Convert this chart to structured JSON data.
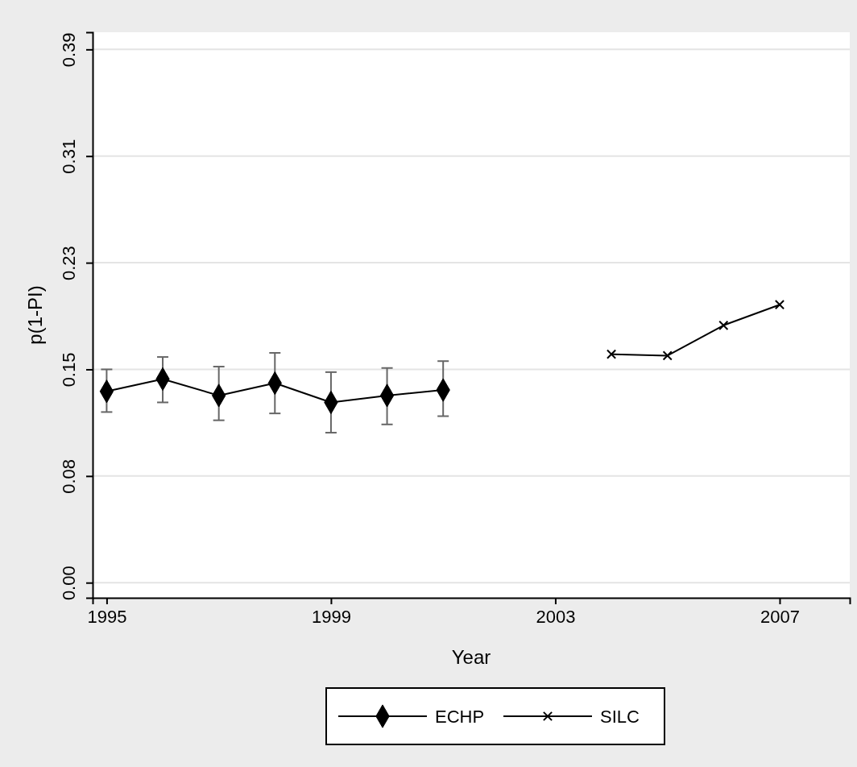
{
  "chart_data": {
    "type": "line",
    "xlabel": "Year",
    "ylabel": "p(1-PI)",
    "xlim": [
      1994.75,
      2008.25
    ],
    "xticks": [
      1995,
      1999,
      2003,
      2007
    ],
    "ylim": [
      -0.011,
      0.4
    ],
    "yticks": [
      {
        "value": 0,
        "label": "0.00"
      },
      {
        "value": 0.0775,
        "label": "0.08"
      },
      {
        "value": 0.155,
        "label": "0.15"
      },
      {
        "value": 0.2325,
        "label": "0.23"
      },
      {
        "value": 0.31,
        "label": "0.31"
      },
      {
        "value": 0.3875,
        "label": "0.39"
      }
    ],
    "grid": "y",
    "legend": "bottom",
    "line_style": "solid",
    "series": [
      {
        "name": "ECHP",
        "color": "#000000",
        "marker": "diamond",
        "x": [
          1995,
          1996,
          1997,
          1998,
          1999,
          2000,
          2001
        ],
        "values": [
          0.139,
          0.148,
          0.136,
          0.145,
          0.131,
          0.136,
          0.14
        ],
        "errors": [
          [
            0.124,
            0.155
          ],
          [
            0.131,
            0.164
          ],
          [
            0.118,
            0.157
          ],
          [
            0.123,
            0.167
          ],
          [
            0.109,
            0.153
          ],
          [
            0.115,
            0.156
          ],
          [
            0.121,
            0.161
          ]
        ]
      },
      {
        "name": "SILC",
        "color": "#000000",
        "marker": "cross",
        "x": [
          2004,
          2005,
          2006,
          2007
        ],
        "values": [
          0.166,
          0.165,
          0.187,
          0.202
        ]
      }
    ]
  }
}
